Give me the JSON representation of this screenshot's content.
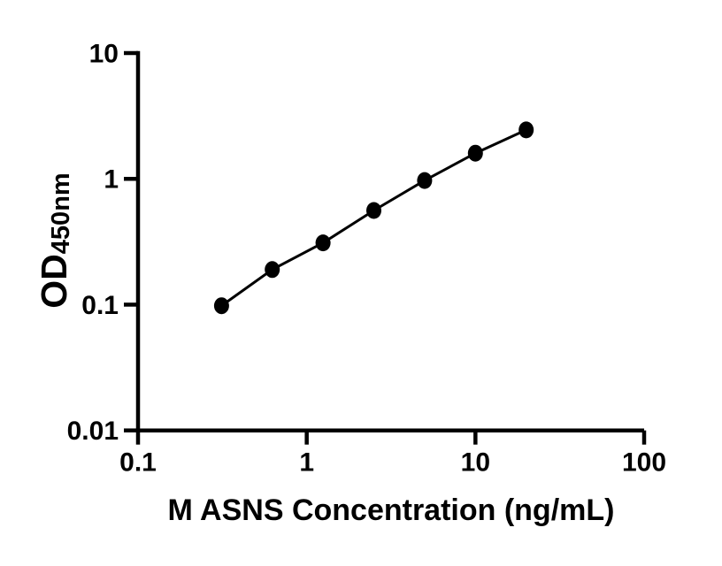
{
  "figure": {
    "background_color": "#ffffff",
    "foreground_color": "#000000"
  },
  "chart_data": {
    "type": "line",
    "subtype": "scatter-line-standard-curve",
    "scale": "log-log",
    "title": "",
    "xlabel": "M ASNS Concentration (ng/mL)",
    "ylabel_main": "OD",
    "ylabel_subscript": "450nm",
    "x": [
      0.3125,
      0.625,
      1.25,
      2.5,
      5,
      10,
      20
    ],
    "y": [
      0.098,
      0.19,
      0.31,
      0.56,
      0.97,
      1.6,
      2.45
    ],
    "xlim": [
      0.1,
      100
    ],
    "ylim": [
      0.01,
      10
    ],
    "x_tick_values": [
      0.1,
      1,
      10,
      100
    ],
    "x_tick_labels": [
      "0.1",
      "1",
      "10",
      "100"
    ],
    "y_tick_values": [
      0.01,
      0.1,
      1,
      10
    ],
    "y_tick_labels": [
      "0.01",
      "0.1",
      "1",
      "10"
    ],
    "grid": false,
    "legend": false,
    "line_color": "#000000",
    "marker_color": "#000000",
    "marker_shape": "filled-circle"
  }
}
